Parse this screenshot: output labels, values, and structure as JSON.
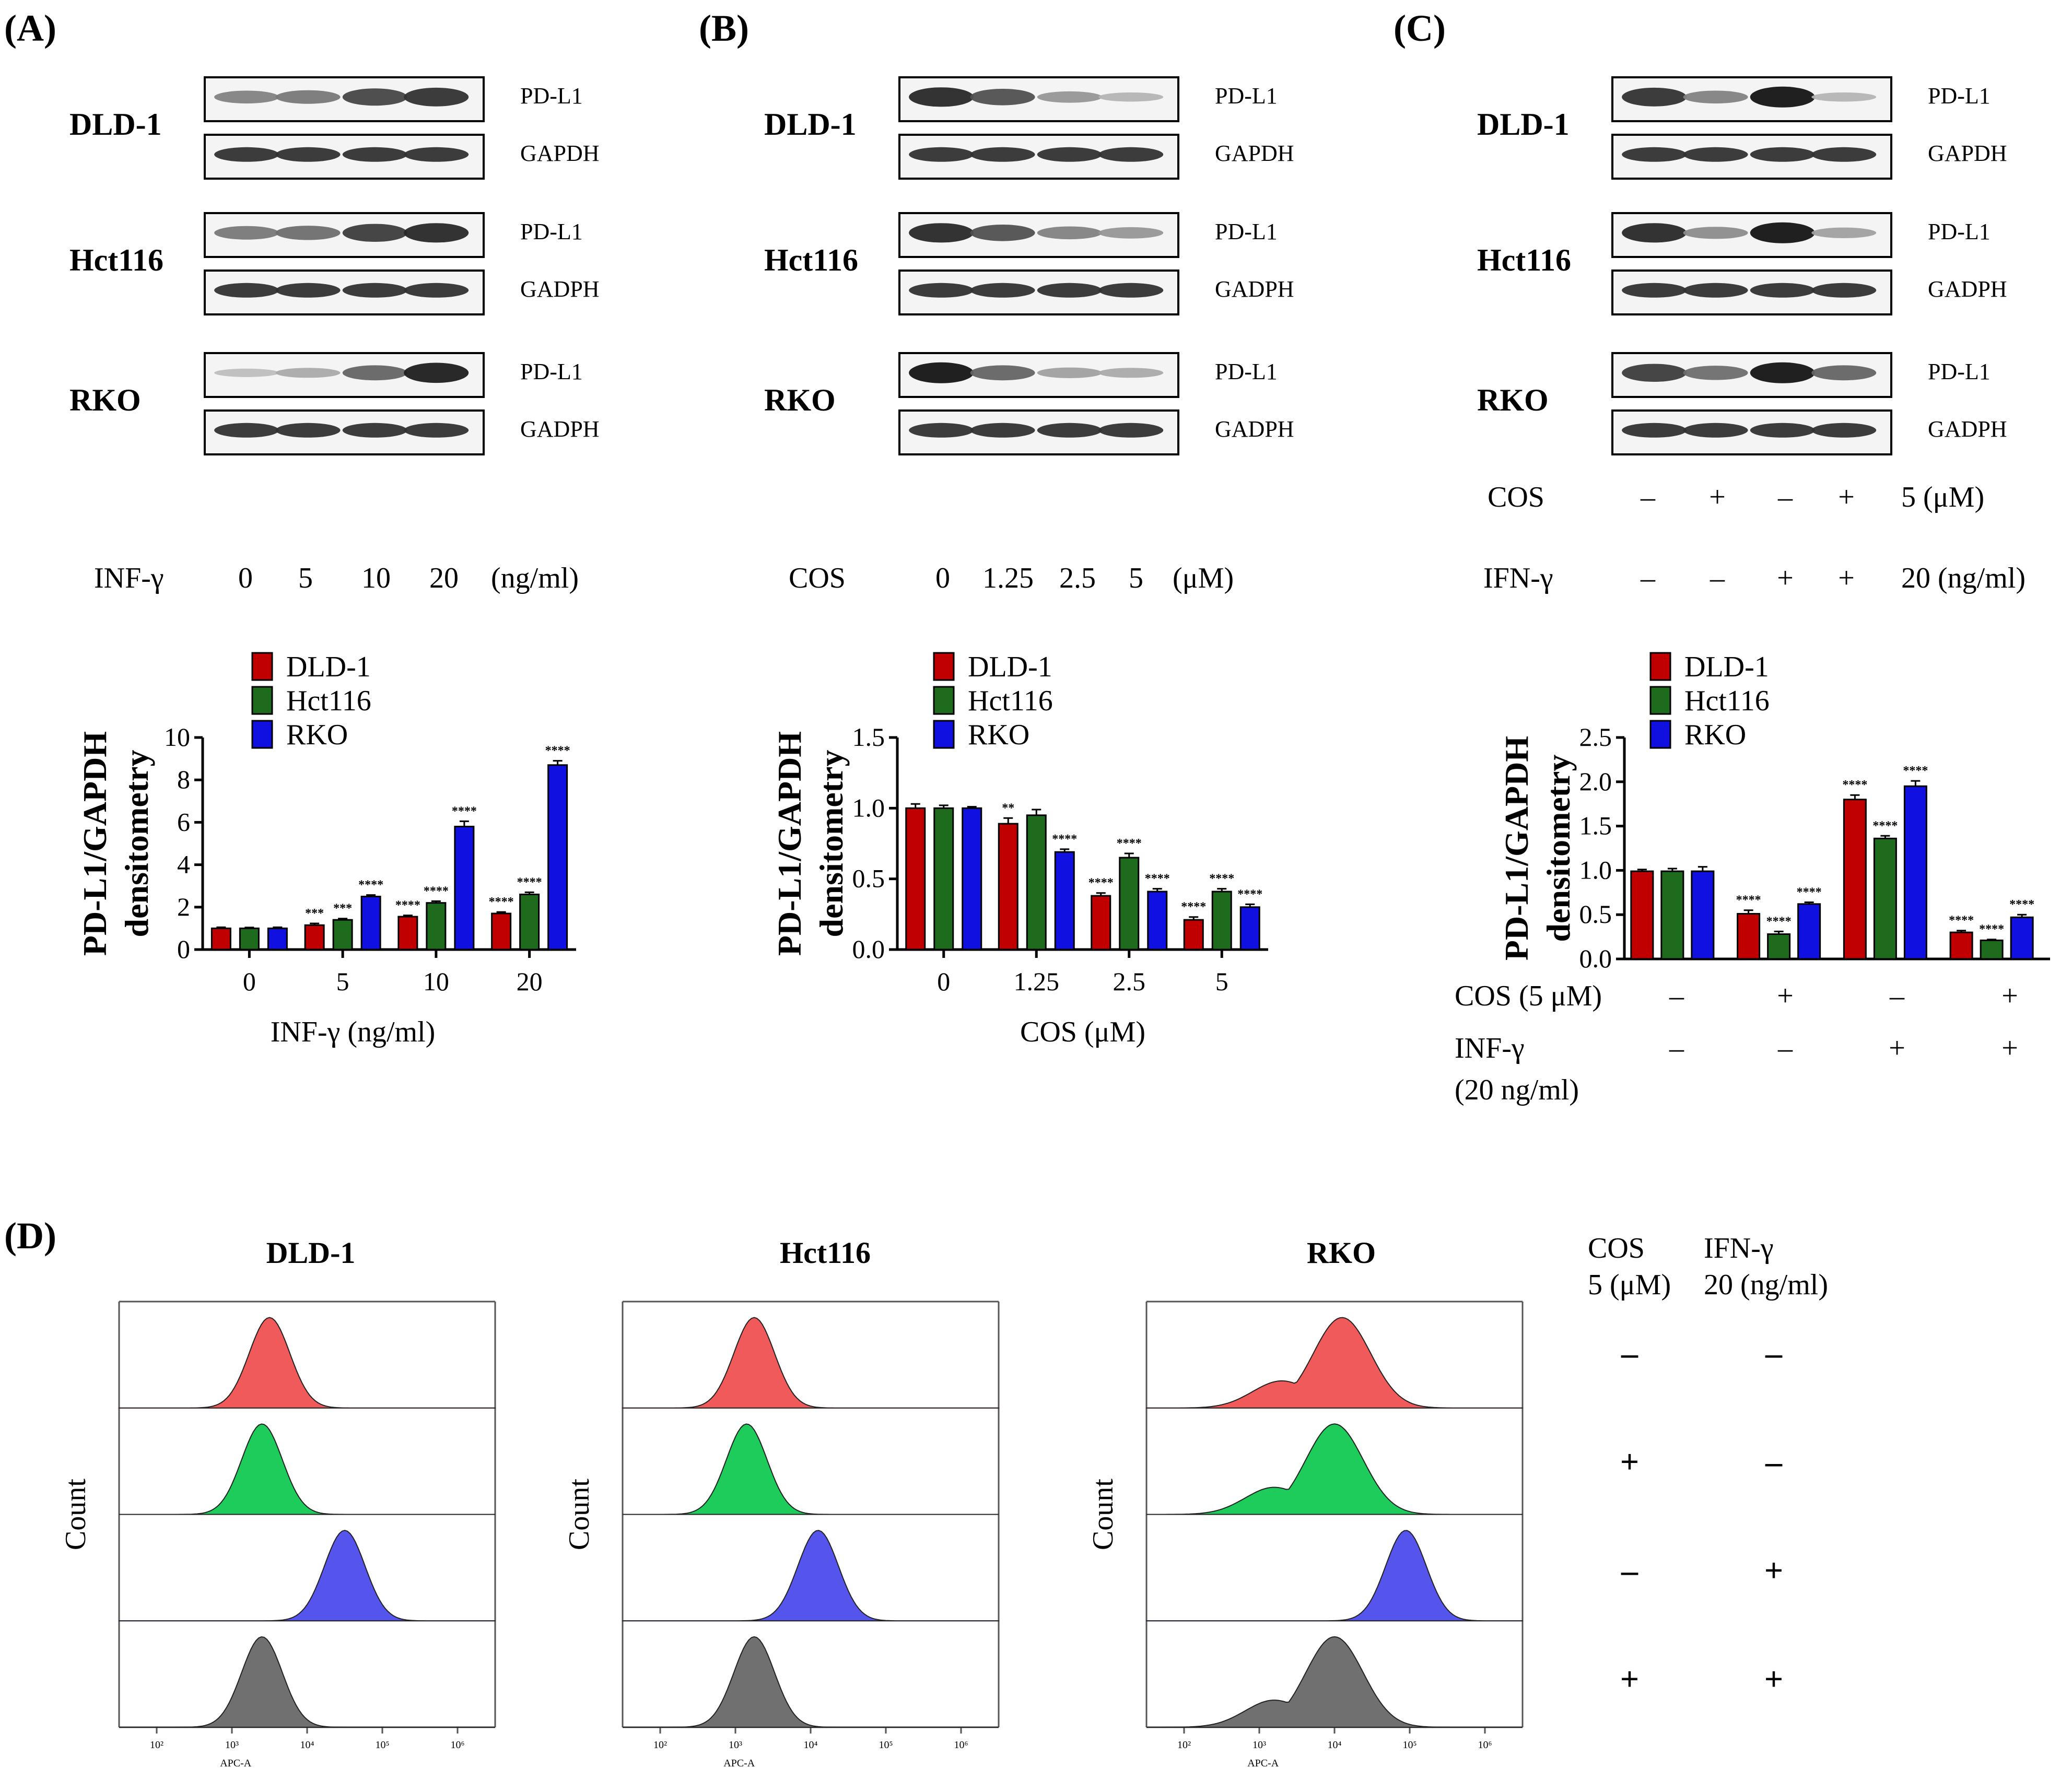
{
  "panels": {
    "A": {
      "label": "(A)"
    },
    "B": {
      "label": "(B)"
    },
    "C": {
      "label": "(C)"
    },
    "D": {
      "label": "(D)"
    }
  },
  "blots": {
    "cell_lines": [
      "DLD-1",
      "Hct116",
      "RKO"
    ],
    "A": {
      "bands": [
        [
          "PD-L1",
          "GAPDH"
        ],
        [
          "PD-L1",
          "GADPH"
        ],
        [
          "PD-L1",
          "GADPH"
        ]
      ],
      "treatment_label": "INF-γ",
      "doses": [
        "0",
        "5",
        "10",
        "20"
      ],
      "unit": "(ng/ml)",
      "intensity": [
        [
          0.45,
          0.5,
          0.75,
          0.85
        ],
        [
          0.5,
          0.55,
          0.8,
          0.9
        ],
        [
          0.15,
          0.25,
          0.6,
          0.95
        ]
      ]
    },
    "B": {
      "bands": [
        [
          "PD-L1",
          "GAPDH"
        ],
        [
          "PD-L1",
          "GADPH"
        ],
        [
          "PD-L1",
          "GADPH"
        ]
      ],
      "treatment_label": "COS",
      "doses": [
        "0",
        "1.25",
        "2.5",
        "5"
      ],
      "unit": "(μM)",
      "intensity": [
        [
          0.9,
          0.7,
          0.35,
          0.2
        ],
        [
          0.9,
          0.7,
          0.45,
          0.35
        ],
        [
          1.0,
          0.6,
          0.3,
          0.25
        ]
      ]
    },
    "C": {
      "bands": [
        [
          "PD-L1",
          "GAPDH"
        ],
        [
          "PD-L1",
          "GADPH"
        ],
        [
          "PD-L1",
          "GADPH"
        ]
      ],
      "rows": [
        {
          "label": "COS",
          "signs": [
            "–",
            "+",
            "–",
            "+"
          ],
          "unit": "5 (μM)"
        },
        {
          "label": "IFN-γ",
          "signs": [
            "–",
            "–",
            "+",
            "+"
          ],
          "unit": "20 (ng/ml)"
        }
      ],
      "intensity": [
        [
          0.85,
          0.45,
          1.0,
          0.2
        ],
        [
          0.9,
          0.4,
          1.0,
          0.3
        ],
        [
          0.8,
          0.55,
          1.0,
          0.6
        ]
      ]
    }
  },
  "colors": {
    "DLD-1": "#c00000",
    "Hct116": "#1e6b1e",
    "RKO": "#1010e0",
    "fc": [
      "#f05a5a",
      "#1ecc5c",
      "#5555ee",
      "#707070"
    ]
  },
  "chart_data": [
    {
      "type": "bar",
      "panel": "A",
      "categories": [
        "0",
        "5",
        "10",
        "20"
      ],
      "xlabel": "INF-γ (ng/ml)",
      "ylabel": [
        "PD-L1/GAPDH",
        "densitometry"
      ],
      "ylim": [
        0,
        10
      ],
      "yticks": [
        "0",
        "2",
        "4",
        "6",
        "8",
        "10"
      ],
      "legend": "top-left",
      "series": [
        {
          "name": "DLD-1",
          "values": [
            1.0,
            1.15,
            1.55,
            1.7
          ],
          "err": [
            0.05,
            0.08,
            0.06,
            0.07
          ],
          "stars": [
            "",
            "***",
            "****",
            "****"
          ]
        },
        {
          "name": "Hct116",
          "values": [
            1.0,
            1.4,
            2.2,
            2.6
          ],
          "err": [
            0.04,
            0.06,
            0.08,
            0.1
          ],
          "stars": [
            "",
            "***",
            "****",
            "****"
          ]
        },
        {
          "name": "RKO",
          "values": [
            1.0,
            2.5,
            5.8,
            8.7
          ],
          "err": [
            0.05,
            0.07,
            0.25,
            0.2
          ],
          "stars": [
            "",
            "****",
            "****",
            "****"
          ]
        }
      ]
    },
    {
      "type": "bar",
      "panel": "B",
      "categories": [
        "0",
        "1.25",
        "2.5",
        "5"
      ],
      "xlabel": "COS (μM)",
      "ylabel": [
        "PD-L1/GAPDH",
        "densitometry"
      ],
      "ylim": [
        0,
        1.5
      ],
      "yticks": [
        "0.0",
        "0.5",
        "1.0",
        "1.5"
      ],
      "legend": "top-left",
      "series": [
        {
          "name": "DLD-1",
          "values": [
            1.0,
            0.89,
            0.38,
            0.21
          ],
          "err": [
            0.03,
            0.04,
            0.02,
            0.02
          ],
          "stars": [
            "",
            "**",
            "****",
            "****"
          ]
        },
        {
          "name": "Hct116",
          "values": [
            1.0,
            0.95,
            0.65,
            0.41
          ],
          "err": [
            0.02,
            0.04,
            0.03,
            0.02
          ],
          "stars": [
            "",
            "",
            "****",
            "****"
          ]
        },
        {
          "name": "RKO",
          "values": [
            1.0,
            0.69,
            0.41,
            0.3
          ],
          "err": [
            0.01,
            0.02,
            0.02,
            0.02
          ],
          "stars": [
            "",
            "****",
            "****",
            "****"
          ]
        }
      ]
    },
    {
      "type": "bar",
      "panel": "C",
      "categories": [
        "1",
        "2",
        "3",
        "4"
      ],
      "ylabel": [
        "PD-L1/GAPDH",
        "densitometry"
      ],
      "ylim": [
        0,
        2.5
      ],
      "yticks": [
        "0.0",
        "0.5",
        "1.0",
        "1.5",
        "2.0",
        "2.5"
      ],
      "legend": "top-left",
      "x_rows": [
        {
          "label": "COS (5 μM)",
          "signs": [
            "–",
            "+",
            "–",
            "+"
          ]
        },
        {
          "label": "INF-γ",
          "label2": "(20 ng/ml)",
          "signs": [
            "–",
            "–",
            "+",
            "+"
          ]
        }
      ],
      "series": [
        {
          "name": "DLD-1",
          "values": [
            0.99,
            0.51,
            1.8,
            0.3
          ],
          "err": [
            0.02,
            0.04,
            0.05,
            0.02
          ],
          "stars": [
            "",
            "****",
            "****",
            "****"
          ]
        },
        {
          "name": "Hct116",
          "values": [
            0.99,
            0.28,
            1.36,
            0.21
          ],
          "err": [
            0.03,
            0.03,
            0.03,
            0.01
          ],
          "stars": [
            "",
            "****",
            "****",
            "****"
          ]
        },
        {
          "name": "RKO",
          "values": [
            0.99,
            0.62,
            1.95,
            0.47
          ],
          "err": [
            0.05,
            0.02,
            0.06,
            0.03
          ],
          "stars": [
            "",
            "****",
            "****",
            "****"
          ]
        }
      ]
    }
  ],
  "flow": {
    "titles": [
      "DLD-1",
      "Hct116",
      "RKO"
    ],
    "ylabel": "Count",
    "xlabel": "APC-A",
    "xticks": [
      "10²",
      "10³",
      "10⁴",
      "10⁵",
      "10⁶"
    ],
    "legend_header": [
      [
        "COS",
        "5 (μM)"
      ],
      [
        "IFN-γ",
        "20 (ng/ml)"
      ]
    ],
    "legend_rows": [
      [
        "–",
        "–"
      ],
      [
        "+",
        "–"
      ],
      [
        "–",
        "+"
      ],
      [
        "+",
        "+"
      ]
    ],
    "peaks_log10": [
      [
        3.5,
        3.4,
        4.5,
        3.4
      ],
      [
        3.25,
        3.15,
        4.1,
        3.25
      ],
      [
        4.1,
        4.0,
        4.95,
        4.0
      ]
    ]
  }
}
